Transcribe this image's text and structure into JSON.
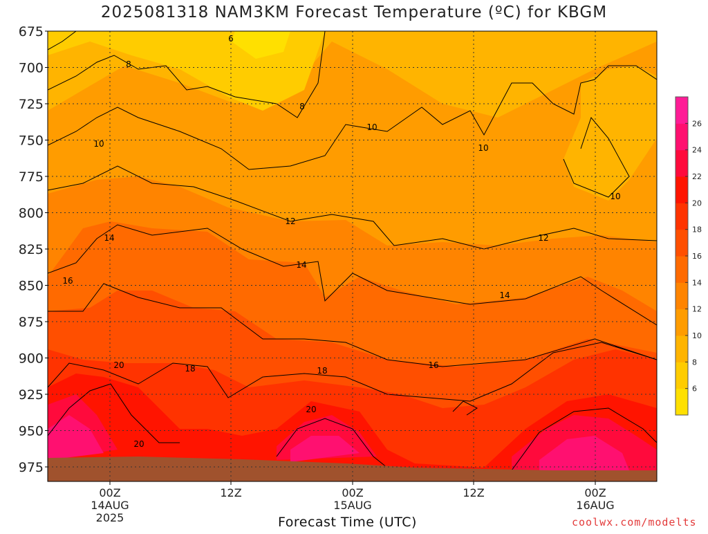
{
  "chart_data": {
    "type": "heatmap",
    "title": "2025081318 NAM3KM Forecast Temperature (ºC) for KBGM",
    "xlabel": "Forecast Time (UTC)",
    "ylabel": "",
    "credit": "coolwx.com/modelts",
    "y_axis": {
      "ticks": [
        675,
        700,
        725,
        750,
        775,
        800,
        825,
        850,
        875,
        900,
        925,
        950,
        975
      ],
      "range": [
        675,
        985
      ],
      "inverted": true,
      "grid": "dotted"
    },
    "x_axis": {
      "ticks": [
        {
          "label": "00Z",
          "sub": [
            "14AUG",
            "2025"
          ]
        },
        {
          "label": "12Z",
          "sub": []
        },
        {
          "label": "00Z",
          "sub": [
            "15AUG"
          ]
        },
        {
          "label": "12Z",
          "sub": []
        },
        {
          "label": "00Z",
          "sub": [
            "16AUG"
          ]
        }
      ],
      "grid": "dotted"
    },
    "colorbar": {
      "levels": [
        4,
        6,
        8,
        10,
        12,
        14,
        16,
        18,
        20,
        22,
        24,
        26,
        28
      ],
      "labels": [
        6,
        8,
        10,
        12,
        14,
        16,
        18,
        20,
        22,
        24,
        26
      ],
      "colors": [
        "#ffe000",
        "#ffcc00",
        "#ffb400",
        "#ff9c00",
        "#ff8400",
        "#ff6a00",
        "#ff4f00",
        "#ff3300",
        "#ff1400",
        "#ff0a3c",
        "#ff1070",
        "#ff1c96"
      ]
    },
    "contour_labels": [
      "6",
      "8",
      "8",
      "10",
      "10",
      "10",
      "10",
      "12",
      "12",
      "14",
      "14",
      "14",
      "16",
      "16",
      "18",
      "18",
      "20",
      "20",
      "20"
    ],
    "ground_color": "#a0522d",
    "legend": "colorbar-right"
  }
}
